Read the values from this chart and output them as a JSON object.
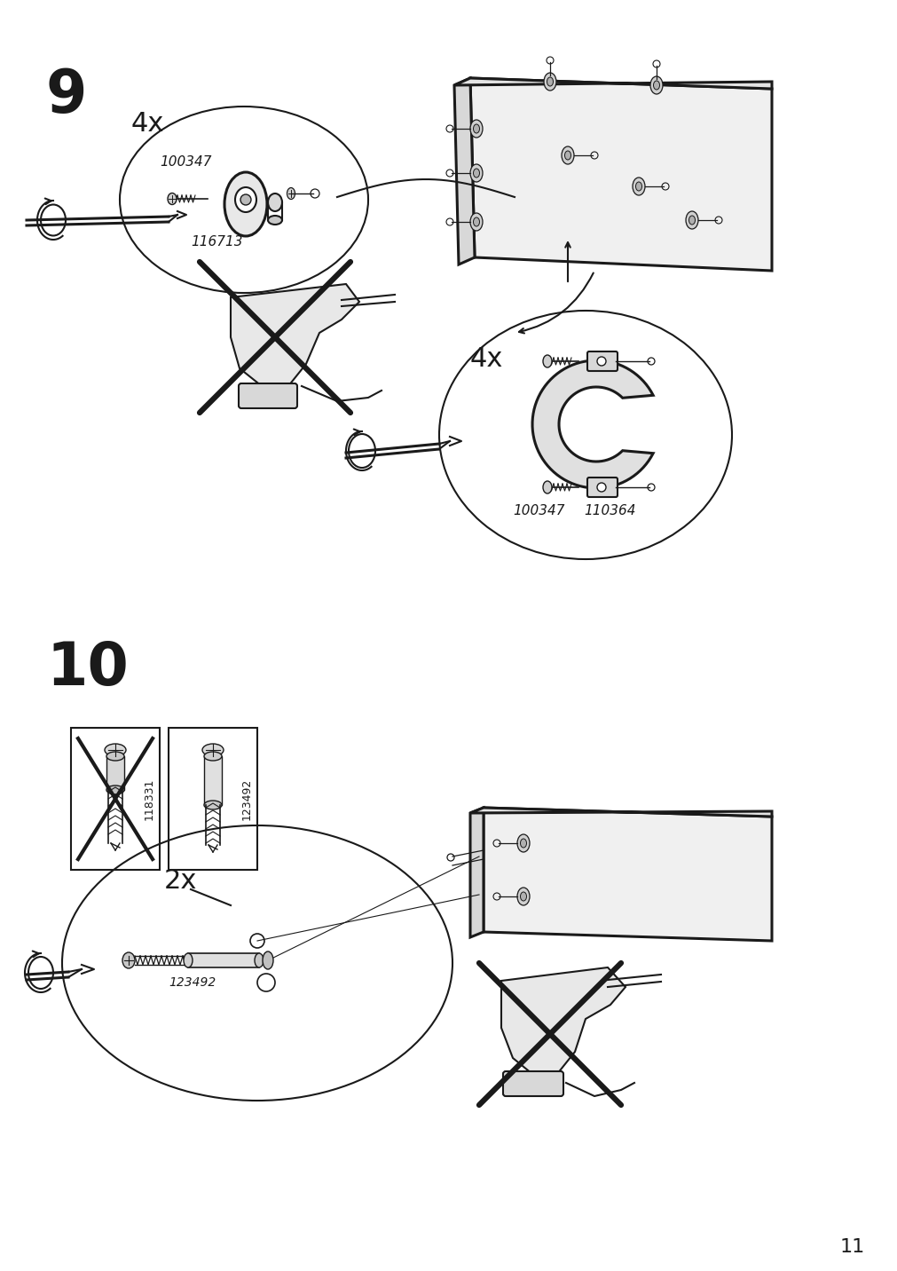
{
  "background_color": "#ffffff",
  "page_number": "11",
  "step9_label": "9",
  "step10_label": "10",
  "step9_4x_top": "4x",
  "step9_4x_bottom": "4x",
  "step9_part1": "100347",
  "step9_part2": "116713",
  "step9_part3": "100347",
  "step9_part4": "110364",
  "step10_2x": "2x",
  "step10_part1": "118331",
  "step10_part2": "123492",
  "step10_part_label": "123492"
}
